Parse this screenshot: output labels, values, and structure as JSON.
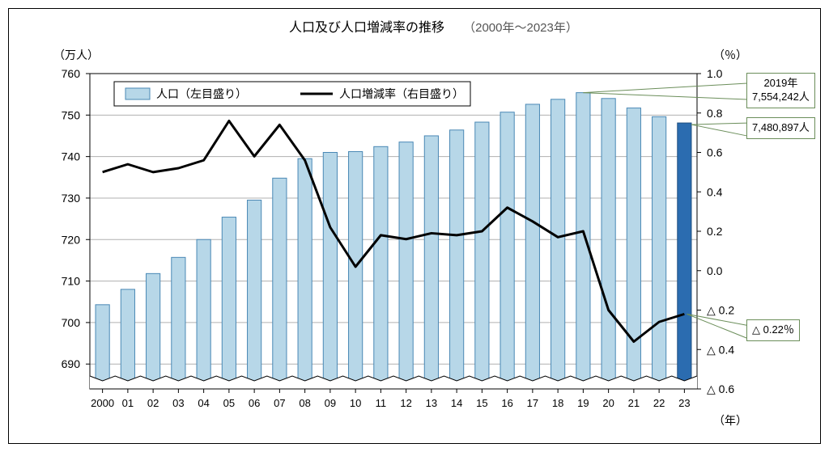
{
  "title_main": "人口及び人口増減率の推移",
  "title_sub": "（2000年～2023年）",
  "left_axis_unit": "（万人）",
  "right_axis_unit": "（％）",
  "x_axis_unit": "（年）",
  "legend": {
    "bar_label": "人口（左目盛り）",
    "line_label": "人口増減率（右目盛り）"
  },
  "chart": {
    "type": "bar+line",
    "background_color": "#ffffff",
    "grid_color": "#b0b0b0",
    "border_color": "#000000",
    "bar_fill": "#b7d7e8",
    "bar_stroke": "#4a88b5",
    "bar_highlight_fill": "#2b6cb0",
    "bar_highlight_stroke": "#1f4f80",
    "line_color": "#000000",
    "line_width": 3,
    "y_left": {
      "min": 684,
      "max": 760,
      "ticks": [
        690,
        700,
        710,
        720,
        730,
        740,
        750,
        760
      ]
    },
    "y_right": {
      "min": -0.6,
      "max": 1.0,
      "ticks": [
        1.0,
        0.8,
        0.6,
        0.4,
        0.2,
        0.0,
        -0.2,
        -0.4,
        -0.6
      ],
      "tick_labels": [
        "1.0",
        "0.8",
        "0.6",
        "0.4",
        "0.2",
        "0.0",
        "△ 0.2",
        "△ 0.4",
        "△ 0.6"
      ]
    },
    "x_labels": [
      "2000",
      "01",
      "02",
      "03",
      "04",
      "05",
      "06",
      "07",
      "08",
      "09",
      "10",
      "11",
      "12",
      "13",
      "14",
      "15",
      "16",
      "17",
      "18",
      "19",
      "20",
      "21",
      "22",
      "23"
    ],
    "bar_values": [
      704.3,
      708.0,
      711.8,
      715.7,
      720.0,
      725.4,
      729.5,
      734.8,
      739.5,
      741.0,
      741.2,
      742.4,
      743.5,
      745.0,
      746.4,
      748.3,
      750.7,
      752.6,
      753.8,
      755.4,
      754.0,
      751.7,
      749.6,
      748.1
    ],
    "line_values": [
      0.5,
      0.54,
      0.5,
      0.52,
      0.56,
      0.76,
      0.58,
      0.74,
      0.56,
      0.22,
      0.02,
      0.18,
      0.16,
      0.19,
      0.18,
      0.2,
      0.32,
      0.25,
      0.17,
      0.2,
      -0.2,
      -0.36,
      -0.26,
      -0.22
    ],
    "highlight_index": 23,
    "bar_width_ratio": 0.55,
    "break_marker": true
  },
  "callouts": {
    "peak": {
      "line1": "2019年",
      "line2": "7,554,242人"
    },
    "latest_pop": {
      "text": "7,480,897人"
    },
    "latest_rate": {
      "text": "△ 0.22％"
    }
  }
}
